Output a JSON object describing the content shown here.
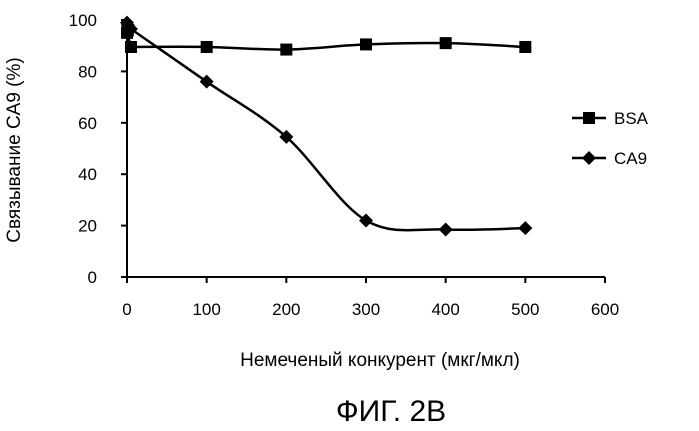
{
  "chart_data": {
    "type": "line",
    "xlabel": "Немеченый конкурент (мкг/мкл)",
    "ylabel": "Связывание CA9 (%)",
    "xlim": [
      0,
      600
    ],
    "ylim": [
      0,
      100
    ],
    "xticks": [
      0,
      100,
      200,
      300,
      400,
      500,
      600
    ],
    "yticks": [
      0,
      20,
      40,
      60,
      80,
      100
    ],
    "grid": false,
    "legend_position": "right",
    "series": [
      {
        "name": "BSA",
        "marker": "square",
        "x": [
          0,
          1,
          5,
          100,
          200,
          300,
          400,
          500
        ],
        "y": [
          95,
          96,
          89.5,
          89.5,
          88.5,
          90.5,
          91,
          89.5
        ]
      },
      {
        "name": "CA9",
        "marker": "diamond",
        "x": [
          0,
          1,
          5,
          100,
          200,
          300,
          400,
          500
        ],
        "y": [
          99,
          98,
          96.5,
          76,
          54.5,
          22,
          18.5,
          19
        ]
      }
    ]
  },
  "caption": "ФИГ. 2B"
}
